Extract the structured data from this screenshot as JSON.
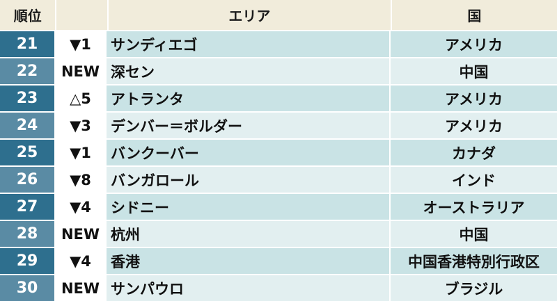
{
  "header": {
    "rank": "順位",
    "change": "",
    "area": "エリア",
    "country": "国"
  },
  "rows": [
    {
      "rank": "21",
      "change": "▼1",
      "area": "サンディエゴ",
      "country": "アメリカ"
    },
    {
      "rank": "22",
      "change": "NEW",
      "area": "深セン",
      "country": "中国"
    },
    {
      "rank": "23",
      "change": "△5",
      "area": "アトランタ",
      "country": "アメリカ"
    },
    {
      "rank": "24",
      "change": "▼3",
      "area": "デンバー＝ボルダー",
      "country": "アメリカ"
    },
    {
      "rank": "25",
      "change": "▼1",
      "area": "バンクーバー",
      "country": "カナダ"
    },
    {
      "rank": "26",
      "change": "▼8",
      "area": "バンガロール",
      "country": "インド"
    },
    {
      "rank": "27",
      "change": "▼4",
      "area": "シドニー",
      "country": "オーストラリア"
    },
    {
      "rank": "28",
      "change": "NEW",
      "area": "杭州",
      "country": "中国"
    },
    {
      "rank": "29",
      "change": "▼4",
      "area": "香港",
      "country": "中国香港特別行政区"
    },
    {
      "rank": "30",
      "change": "NEW",
      "area": "サンパウロ",
      "country": "ブラジル"
    }
  ],
  "colors": {
    "header_bg": "#f1ecdb",
    "rank_odd": "#2e6f8e",
    "rank_even": "#5a8ba4",
    "row_odd": "#c9e3e5",
    "row_even": "#e2eff0"
  }
}
